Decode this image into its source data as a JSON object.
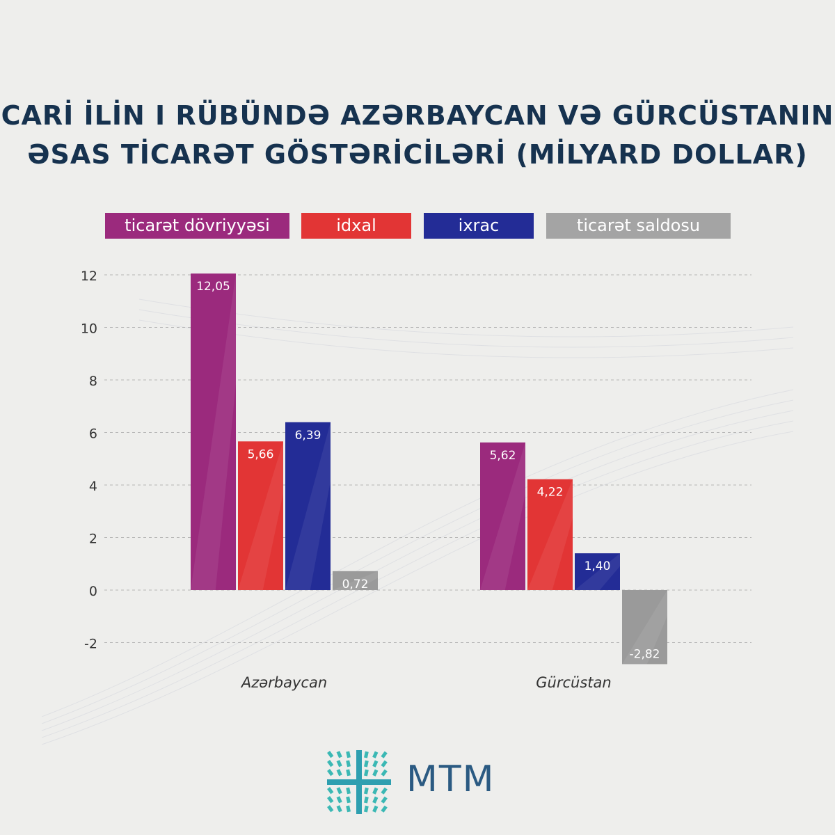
{
  "title": {
    "line1": "CARİ İLİN I RÜBÜNDƏ AZƏRBAYCAN VƏ GÜRCÜSTANIN",
    "line2": "ƏSAS TİCARƏT GÖSTƏRİCİLƏRİ (MİLYARD DOLLAR)"
  },
  "legend": [
    {
      "label": "ticarət dövriyyəsi",
      "color": "#9b2a7d"
    },
    {
      "label": "idxal",
      "color": "#e23535"
    },
    {
      "label": "ixrac",
      "color": "#232c96"
    },
    {
      "label": "ticarət saldosu",
      "color": "#9a9a9a"
    }
  ],
  "chart_data": {
    "type": "bar",
    "categories": [
      "Azərbaycan",
      "Gürcüstan"
    ],
    "series": [
      {
        "name": "ticarət dövriyyəsi",
        "color": "#9b2a7d",
        "values": [
          12.05,
          5.62
        ],
        "labels": [
          "12,05",
          "5,62"
        ]
      },
      {
        "name": "idxal",
        "color": "#e23535",
        "values": [
          5.66,
          4.22
        ],
        "labels": [
          "5,66",
          "4,22"
        ]
      },
      {
        "name": "ixrac",
        "color": "#232c96",
        "values": [
          6.39,
          1.4
        ],
        "labels": [
          "6,39",
          "1,40"
        ]
      },
      {
        "name": "ticarət saldosu",
        "color": "#9a9a9a",
        "values": [
          0.72,
          -2.82
        ],
        "labels": [
          "0,72",
          "-2,82"
        ]
      }
    ],
    "yticks": [
      12,
      10,
      8,
      6,
      4,
      2,
      0,
      -2
    ],
    "ytick_labels": [
      "12",
      "10",
      "8",
      "6",
      "4",
      "2",
      "0",
      "-2"
    ],
    "ylim": [
      -2,
      12
    ],
    "grid": true,
    "legend_position": "top"
  },
  "brand": {
    "name": "MTM"
  }
}
